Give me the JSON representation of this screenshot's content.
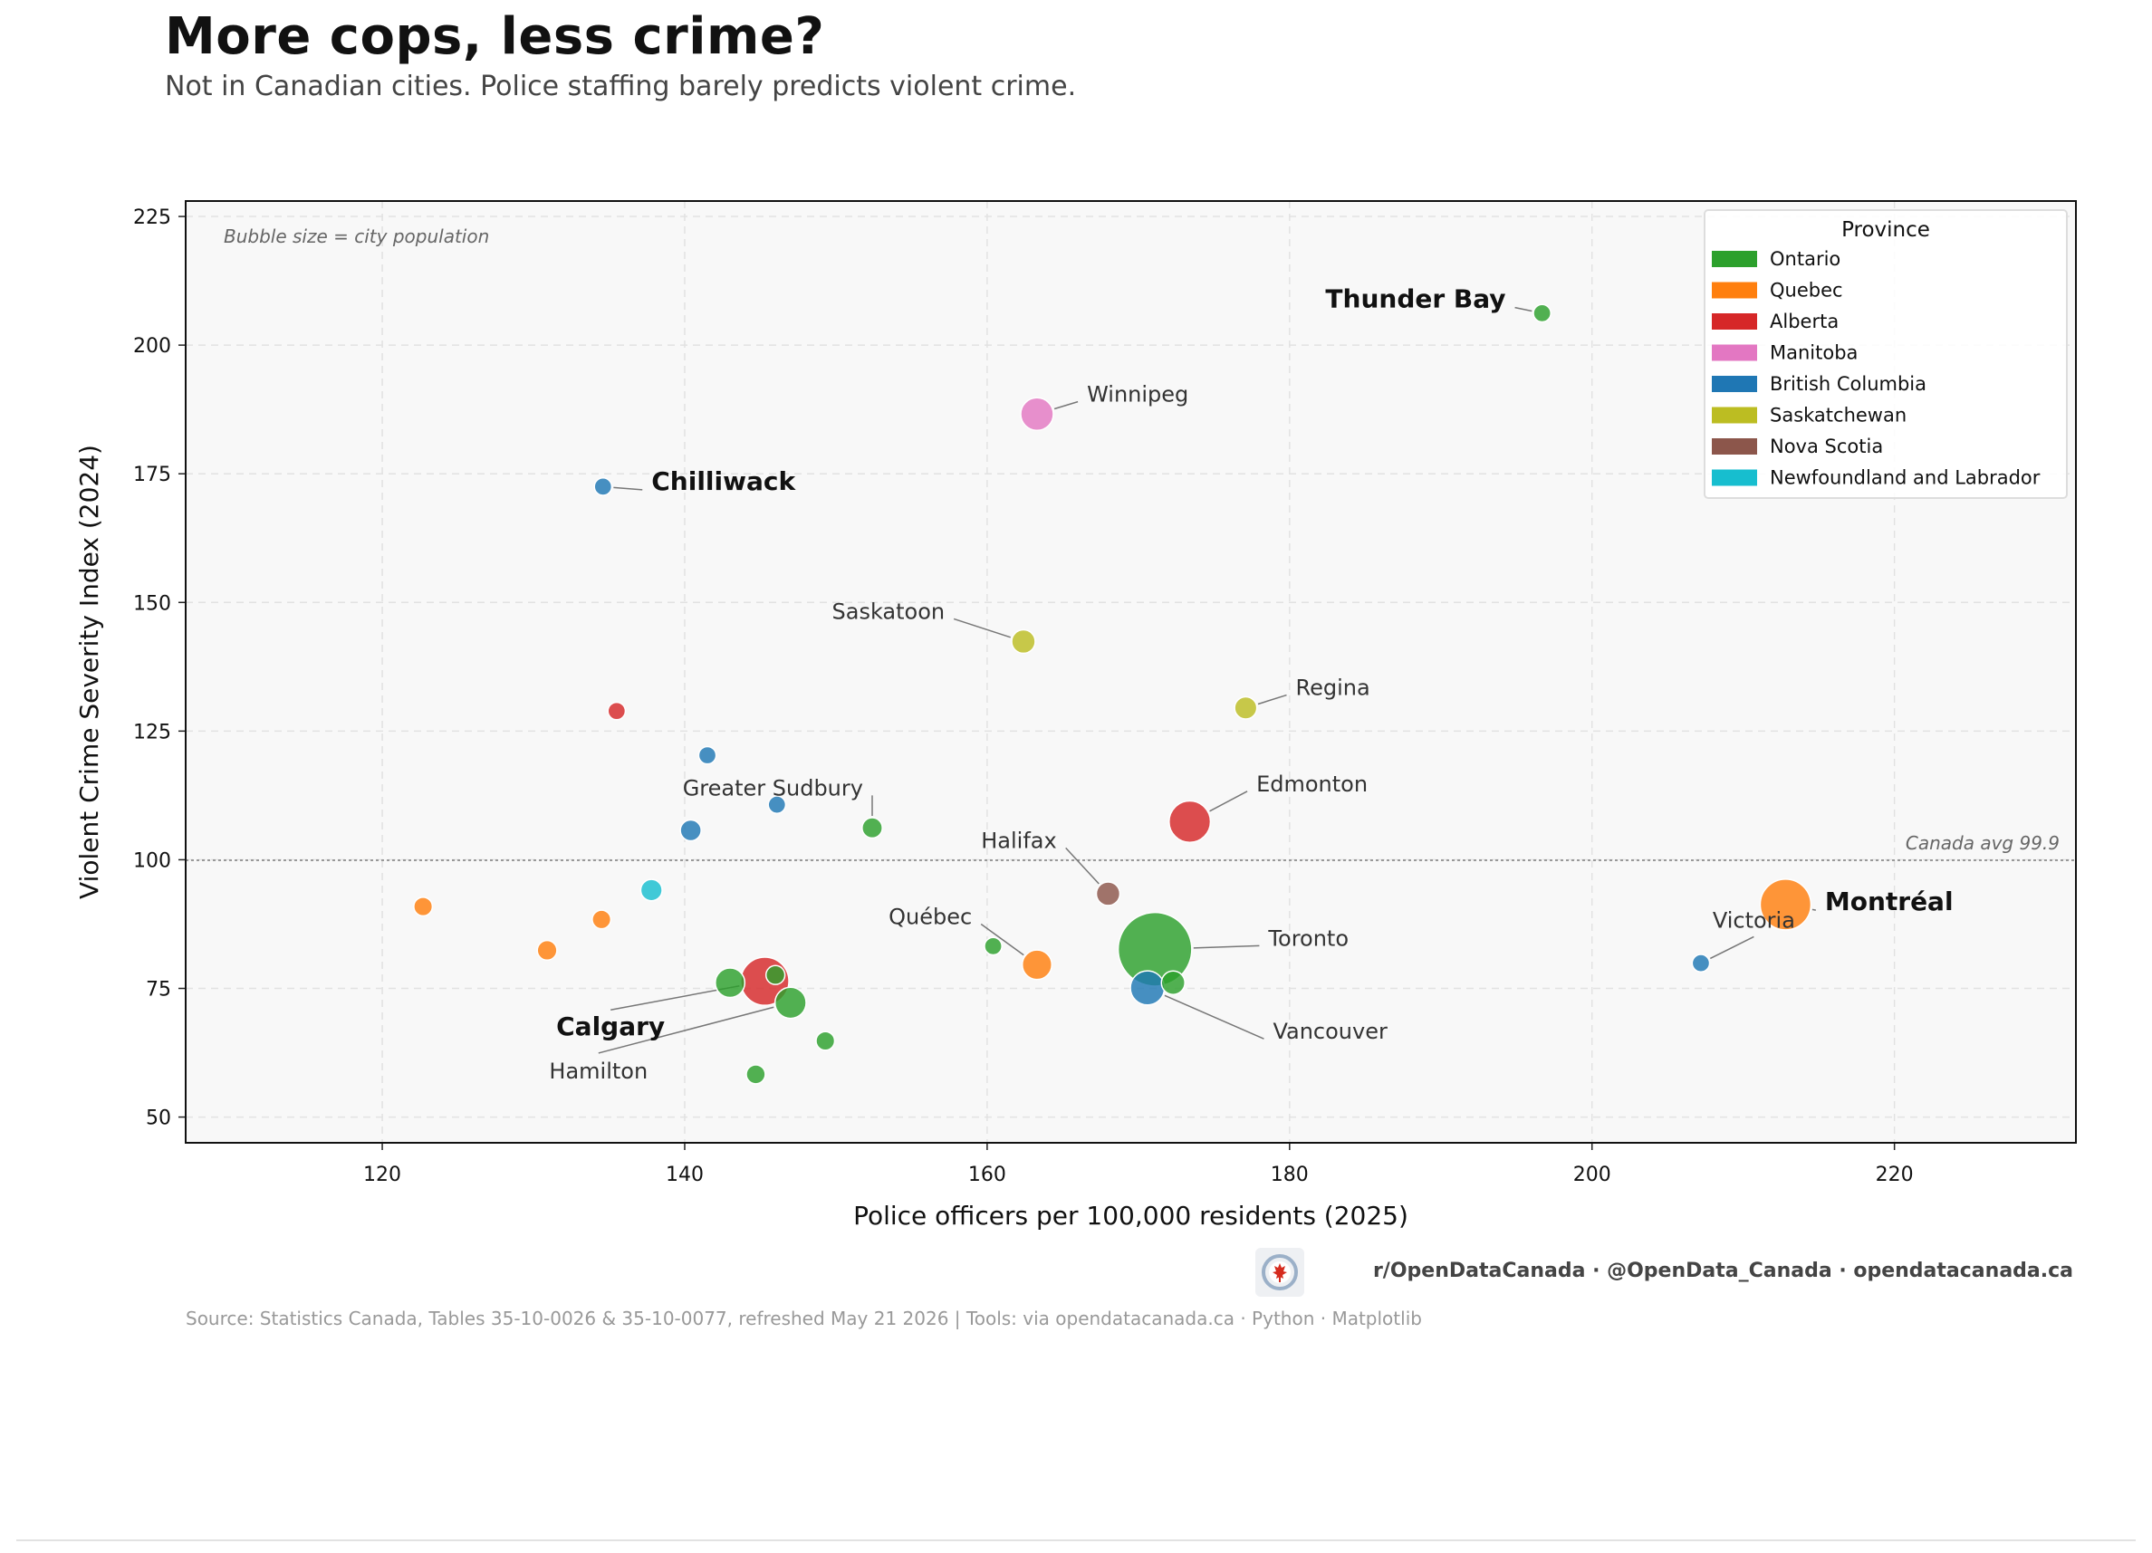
{
  "header": {
    "title": "More cops, less crime?",
    "subtitle": "Not in Canadian cities. Police staffing barely predicts violent crime."
  },
  "footer": {
    "brand": "r/OpenDataCanada  ·  @OpenData_Canada  ·  opendatacanada.ca",
    "source": "Source: Statistics Canada, Tables 35-10-0026 & 35-10-0077, refreshed May 21 2026  |  Tools: via opendatacanada.ca · Python · Matplotlib",
    "logo_icon": "maple-leaf-logo-icon"
  },
  "chart_data": {
    "type": "scatter",
    "title": "More cops, less crime?",
    "subtitle": "Not in Canadian cities. Police staffing barely predicts violent crime.",
    "xlabel": "Police officers per 100,000 residents (2025)",
    "ylabel": "Violent Crime Severity Index (2024)",
    "xlim": [
      107,
      232
    ],
    "ylim": [
      45,
      228
    ],
    "xticks": [
      120,
      140,
      160,
      180,
      200,
      220
    ],
    "yticks": [
      50,
      75,
      100,
      125,
      150,
      175,
      200,
      225
    ],
    "grid": true,
    "size_note": "Bubble size = city population",
    "reference_line": {
      "y": 99.9,
      "label": "Canada avg  99.9"
    },
    "legend": {
      "title": "Province",
      "placement": "top-right",
      "entries": [
        {
          "name": "Ontario",
          "color": "#2ca02c"
        },
        {
          "name": "Quebec",
          "color": "#ff7f0e"
        },
        {
          "name": "Alberta",
          "color": "#d62728"
        },
        {
          "name": "Manitoba",
          "color": "#e377c2"
        },
        {
          "name": "British Columbia",
          "color": "#1f77b4"
        },
        {
          "name": "Saskatchewan",
          "color": "#bcbd22"
        },
        {
          "name": "Nova Scotia",
          "color": "#8c564b"
        },
        {
          "name": "Newfoundland and Labrador",
          "color": "#17becf"
        }
      ]
    },
    "points": [
      {
        "x": 196.7,
        "y": 206.2,
        "province": "Ontario",
        "size": 1,
        "label": "Thunder Bay",
        "bold": true
      },
      {
        "x": 163.3,
        "y": 186.6,
        "province": "Manitoba",
        "size": 8,
        "label": "Winnipeg"
      },
      {
        "x": 134.6,
        "y": 172.5,
        "province": "British Columbia",
        "size": 1,
        "label": "Chilliwack",
        "bold": true
      },
      {
        "x": 162.4,
        "y": 142.4,
        "province": "Saskatchewan",
        "size": 3,
        "label": "Saskatoon"
      },
      {
        "x": 177.1,
        "y": 129.5,
        "province": "Saskatchewan",
        "size": 2.5,
        "label": "Regina"
      },
      {
        "x": 173.4,
        "y": 107.4,
        "province": "Alberta",
        "size": 15,
        "label": "Edmonton"
      },
      {
        "x": 152.4,
        "y": 106.2,
        "province": "Ontario",
        "size": 1.8,
        "label": "Greater Sudbury"
      },
      {
        "x": 168.0,
        "y": 93.4,
        "province": "Nova Scotia",
        "size": 3,
        "label": "Halifax"
      },
      {
        "x": 212.8,
        "y": 91.3,
        "province": "Quebec",
        "size": 25,
        "label": "Montréal",
        "bold": true
      },
      {
        "x": 207.2,
        "y": 79.9,
        "province": "British Columbia",
        "size": 1,
        "label": "Victoria"
      },
      {
        "x": 171.1,
        "y": 82.6,
        "province": "Ontario",
        "size": 60,
        "label": "Toronto"
      },
      {
        "x": 163.3,
        "y": 79.6,
        "province": "Quebec",
        "size": 6,
        "label": "Québec"
      },
      {
        "x": 170.6,
        "y": 75.1,
        "province": "British Columbia",
        "size": 9,
        "label": "Vancouver"
      },
      {
        "x": 145.3,
        "y": 76.4,
        "province": "Alberta",
        "size": 22,
        "label": "Calgary",
        "bold": true
      },
      {
        "x": 147.0,
        "y": 72.2,
        "province": "Ontario",
        "size": 7,
        "label": "Hamilton"
      },
      {
        "x": 160.4,
        "y": 83.2,
        "province": "Ontario",
        "size": 1
      },
      {
        "x": 172.3,
        "y": 76.1,
        "province": "Ontario",
        "size": 3
      },
      {
        "x": 143.0,
        "y": 76.1,
        "province": "Ontario",
        "size": 6
      },
      {
        "x": 146.0,
        "y": 77.6,
        "province": "Ontario",
        "size": 1.4
      },
      {
        "x": 149.3,
        "y": 64.8,
        "province": "Ontario",
        "size": 1.3
      },
      {
        "x": 144.7,
        "y": 58.3,
        "province": "Ontario",
        "size": 1.4
      },
      {
        "x": 135.5,
        "y": 128.9,
        "province": "Alberta",
        "size": 1
      },
      {
        "x": 141.5,
        "y": 120.3,
        "province": "British Columbia",
        "size": 1
      },
      {
        "x": 146.1,
        "y": 110.7,
        "province": "British Columbia",
        "size": 1
      },
      {
        "x": 140.4,
        "y": 105.7,
        "province": "British Columbia",
        "size": 2
      },
      {
        "x": 137.8,
        "y": 94.1,
        "province": "Newfoundland and Labrador",
        "size": 2.2
      },
      {
        "x": 122.7,
        "y": 90.9,
        "province": "Quebec",
        "size": 1.3
      },
      {
        "x": 134.5,
        "y": 88.4,
        "province": "Quebec",
        "size": 1.3
      },
      {
        "x": 130.9,
        "y": 82.4,
        "province": "Quebec",
        "size": 1.6
      }
    ],
    "annotations": [
      {
        "label": "Thunder Bay",
        "tx": 194.3,
        "ty": 207.3,
        "anchor": "end",
        "bold": true
      },
      {
        "label": "Winnipeg",
        "tx": 166.6,
        "ty": 189.0,
        "anchor": "start"
      },
      {
        "label": "Chilliwack",
        "tx": 137.8,
        "ty": 171.9,
        "anchor": "start",
        "bold": true
      },
      {
        "label": "Saskatoon",
        "tx": 157.2,
        "ty": 146.8,
        "anchor": "end"
      },
      {
        "label": "Regina",
        "tx": 180.4,
        "ty": 132.0,
        "anchor": "start"
      },
      {
        "label": "Edmonton",
        "tx": 177.8,
        "ty": 113.3,
        "anchor": "start"
      },
      {
        "label": "Greater Sudbury",
        "tx": 151.8,
        "ty": 112.5,
        "anchor": "end"
      },
      {
        "label": "Halifax",
        "tx": 164.6,
        "ty": 102.3,
        "anchor": "end"
      },
      {
        "label": "Montréal",
        "tx": 215.4,
        "ty": 90.2,
        "anchor": "start",
        "bold": true
      },
      {
        "label": "Victoria",
        "tx": 210.7,
        "ty": 86.8,
        "anchor": "middle"
      },
      {
        "label": "Toronto",
        "tx": 178.6,
        "ty": 83.3,
        "anchor": "start"
      },
      {
        "label": "Québec",
        "tx": 159.0,
        "ty": 87.5,
        "anchor": "end"
      },
      {
        "label": "Vancouver",
        "tx": 178.9,
        "ty": 65.2,
        "anchor": "start"
      },
      {
        "label": "Calgary",
        "tx": 135.1,
        "ty": 65.9,
        "anchor": "middle",
        "bold": true
      },
      {
        "label": "Hamilton",
        "tx": 134.3,
        "ty": 57.5,
        "anchor": "middle"
      }
    ]
  }
}
